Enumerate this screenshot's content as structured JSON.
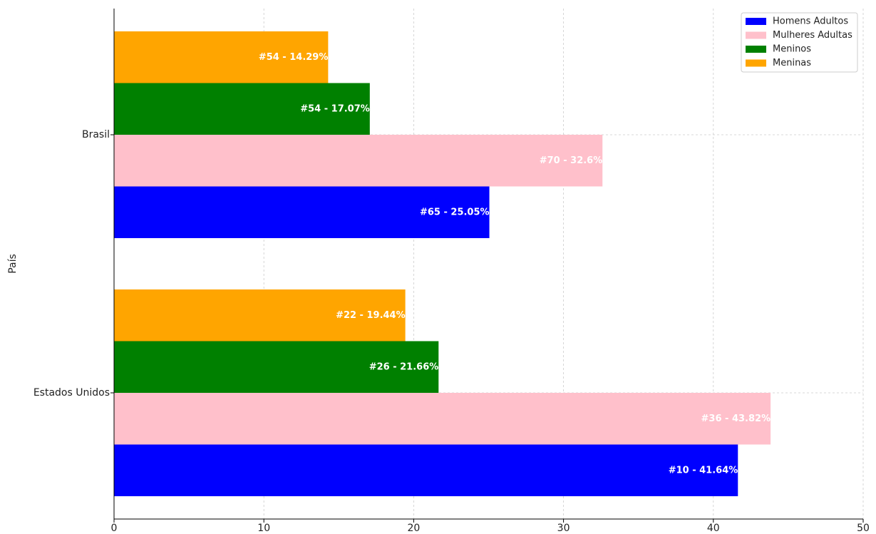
{
  "chart_data": {
    "type": "barh",
    "y_label": "País",
    "categories": [
      "Brasil",
      "Estados Unidos"
    ],
    "series": [
      {
        "name": "Homens Adultos",
        "color": "#0000ff",
        "values": [
          25.05,
          41.64
        ],
        "value_labels": [
          "#65 - 25.05%",
          "#10 - 41.64%"
        ]
      },
      {
        "name": "Mulheres Adultas",
        "color": "#ffc0cb",
        "values": [
          32.6,
          43.82
        ],
        "value_labels": [
          "#70 - 32.6%",
          "#36 - 43.82%"
        ]
      },
      {
        "name": "Meninos",
        "color": "#008000",
        "values": [
          17.07,
          21.66
        ],
        "value_labels": [
          "#54 - 17.07%",
          "#26 - 21.66%"
        ]
      },
      {
        "name": "Meninas",
        "color": "#ffa500",
        "values": [
          14.29,
          19.44
        ],
        "value_labels": [
          "#54 - 14.29%",
          "#22 - 19.44%"
        ]
      }
    ],
    "xlim": [
      0,
      50
    ],
    "xticks": [
      0,
      10,
      20,
      30,
      40,
      50
    ],
    "grid": true,
    "legend": "upper right"
  }
}
